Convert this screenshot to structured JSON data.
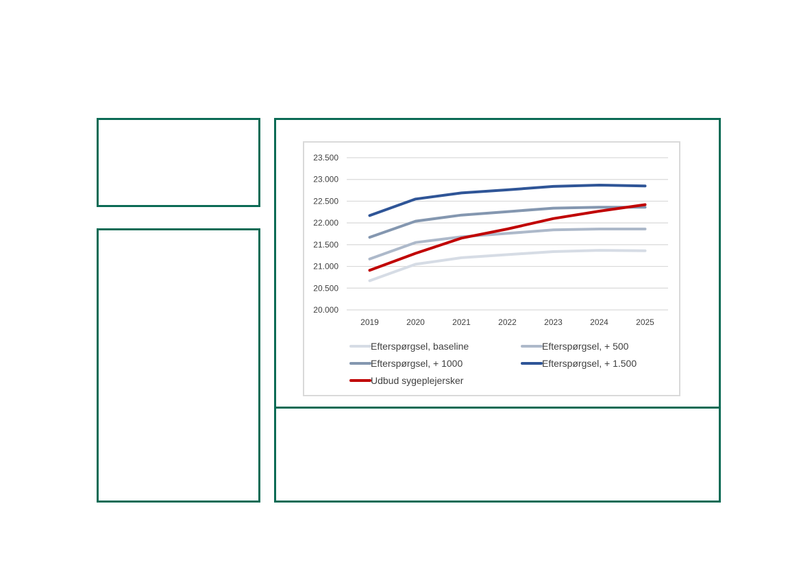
{
  "chart_data": {
    "type": "line",
    "x": [
      "2019",
      "2020",
      "2021",
      "2022",
      "2023",
      "2024",
      "2025"
    ],
    "ylim": [
      20000,
      23500
    ],
    "yticks": [
      20000,
      20500,
      21000,
      21500,
      22000,
      22500,
      23000,
      23500
    ],
    "ytick_labels": [
      "20.000",
      "20.500",
      "21.000",
      "21.500",
      "22.000",
      "22.500",
      "23.000",
      "23.500"
    ],
    "grid": true,
    "legend_position": "bottom",
    "series": [
      {
        "name": "Efterspørgsel, baseline",
        "color": "#d6dce5",
        "values": [
          20670,
          21050,
          21200,
          21270,
          21340,
          21370,
          21360
        ]
      },
      {
        "name": "Efterspørgsel, + 500",
        "color": "#adb9ca",
        "values": [
          21170,
          21550,
          21680,
          21760,
          21840,
          21860,
          21860
        ]
      },
      {
        "name": "Efterspørgsel, + 1000",
        "color": "#8497b0",
        "values": [
          21670,
          22040,
          22180,
          22260,
          22340,
          22360,
          22360
        ]
      },
      {
        "name": "Efterspørgsel, + 1.500",
        "color": "#2f5597",
        "values": [
          22170,
          22550,
          22690,
          22760,
          22840,
          22870,
          22850
        ]
      },
      {
        "name": "Udbud sygeplejersker",
        "color": "#c00000",
        "values": [
          20910,
          21300,
          21650,
          21860,
          22100,
          22270,
          22420
        ]
      }
    ]
  }
}
